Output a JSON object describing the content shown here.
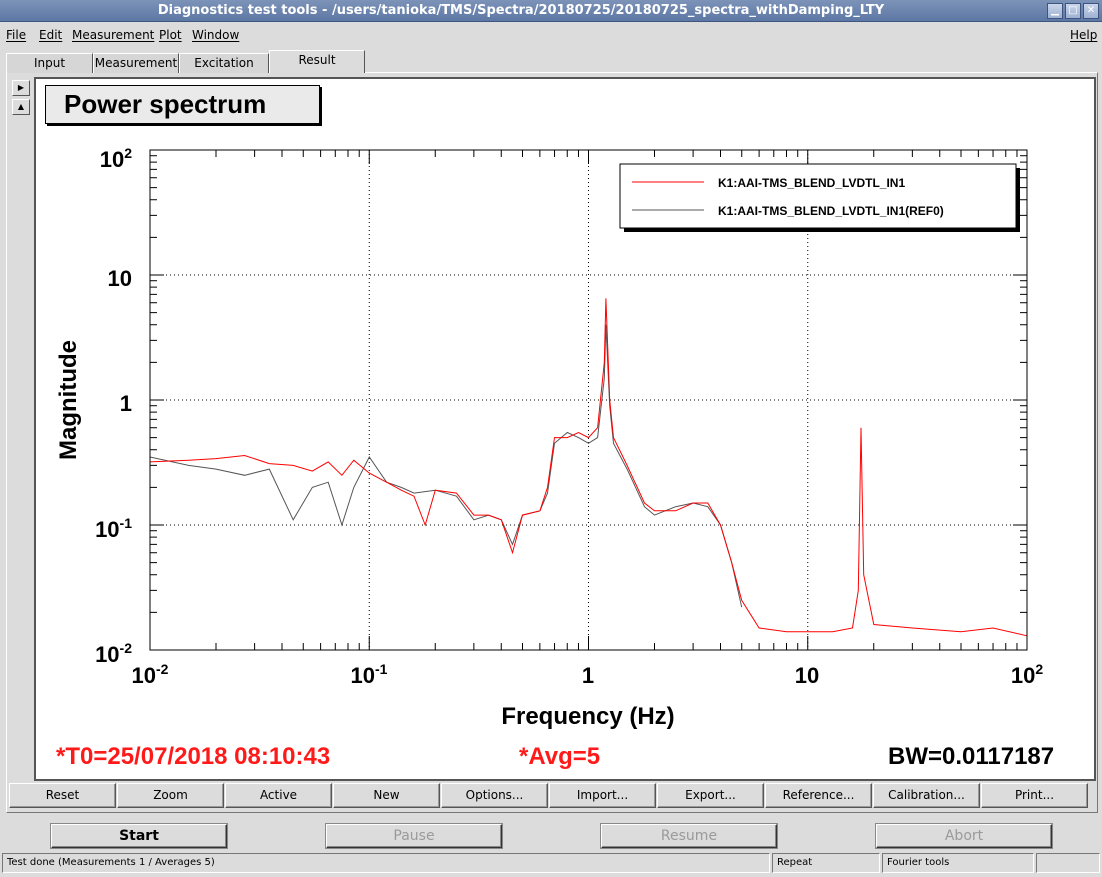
{
  "window": {
    "title": "Diagnostics test tools - /users/tanioka/TMS/Spectra/20180725/20180725_spectra_withDamping_LTY"
  },
  "menu": {
    "items": [
      "File",
      "Edit",
      "Measurement",
      "Plot",
      "Window"
    ],
    "help": "Help"
  },
  "tabs": [
    "Input",
    "Measurement",
    "Excitation",
    "Result"
  ],
  "active_tab": "Result",
  "plot": {
    "title": "Power spectrum",
    "t0": "*T0=25/07/2018 08:10:43",
    "avg": "*Avg=5",
    "bw": "BW=0.0117187"
  },
  "chart_data": {
    "type": "line",
    "title": "Power spectrum",
    "xlabel": "Frequency (Hz)",
    "ylabel": "Magnitude",
    "xscale": "log",
    "yscale": "log",
    "xlim": [
      0.01,
      100
    ],
    "ylim": [
      0.01,
      100
    ],
    "x_ticks": [
      "10-2",
      "10-1",
      "1",
      "10",
      "102"
    ],
    "y_ticks": [
      "10-2",
      "10-1",
      "1",
      "10",
      "102"
    ],
    "grid": true,
    "legend_position": "top-right",
    "series": [
      {
        "name": "K1:AAI-TMS_BLEND_LVDTL_IN1",
        "color": "#ff0000",
        "points": [
          [
            0.01,
            0.32
          ],
          [
            0.015,
            0.33
          ],
          [
            0.02,
            0.34
          ],
          [
            0.027,
            0.36
          ],
          [
            0.035,
            0.31
          ],
          [
            0.045,
            0.3
          ],
          [
            0.055,
            0.27
          ],
          [
            0.065,
            0.32
          ],
          [
            0.075,
            0.25
          ],
          [
            0.085,
            0.33
          ],
          [
            0.1,
            0.26
          ],
          [
            0.12,
            0.22
          ],
          [
            0.14,
            0.19
          ],
          [
            0.16,
            0.17
          ],
          [
            0.18,
            0.1
          ],
          [
            0.2,
            0.19
          ],
          [
            0.25,
            0.18
          ],
          [
            0.3,
            0.12
          ],
          [
            0.35,
            0.12
          ],
          [
            0.4,
            0.11
          ],
          [
            0.45,
            0.06
          ],
          [
            0.5,
            0.12
          ],
          [
            0.6,
            0.13
          ],
          [
            0.65,
            0.2
          ],
          [
            0.7,
            0.5
          ],
          [
            0.8,
            0.5
          ],
          [
            0.9,
            0.55
          ],
          [
            1.0,
            0.5
          ],
          [
            1.1,
            0.6
          ],
          [
            1.18,
            2.0
          ],
          [
            1.2,
            6.5
          ],
          [
            1.25,
            1.0
          ],
          [
            1.3,
            0.5
          ],
          [
            1.5,
            0.3
          ],
          [
            1.8,
            0.15
          ],
          [
            2.0,
            0.13
          ],
          [
            2.5,
            0.13
          ],
          [
            3.0,
            0.15
          ],
          [
            3.5,
            0.15
          ],
          [
            4.0,
            0.1
          ],
          [
            4.5,
            0.05
          ],
          [
            5.0,
            0.025
          ],
          [
            6.0,
            0.015
          ],
          [
            8.0,
            0.014
          ],
          [
            10.0,
            0.014
          ],
          [
            13.0,
            0.014
          ],
          [
            16.0,
            0.015
          ],
          [
            17.0,
            0.03
          ],
          [
            17.5,
            0.6
          ],
          [
            18.0,
            0.04
          ],
          [
            20.0,
            0.016
          ],
          [
            30.0,
            0.015
          ],
          [
            50.0,
            0.014
          ],
          [
            70.0,
            0.015
          ],
          [
            100.0,
            0.013
          ]
        ]
      },
      {
        "name": "K1:AAI-TMS_BLEND_LVDTL_IN1(REF0)",
        "color": "#555555",
        "points": [
          [
            0.01,
            0.35
          ],
          [
            0.015,
            0.3
          ],
          [
            0.02,
            0.28
          ],
          [
            0.027,
            0.25
          ],
          [
            0.035,
            0.28
          ],
          [
            0.045,
            0.11
          ],
          [
            0.055,
            0.2
          ],
          [
            0.065,
            0.22
          ],
          [
            0.075,
            0.1
          ],
          [
            0.085,
            0.2
          ],
          [
            0.1,
            0.35
          ],
          [
            0.12,
            0.22
          ],
          [
            0.14,
            0.2
          ],
          [
            0.16,
            0.18
          ],
          [
            0.2,
            0.19
          ],
          [
            0.25,
            0.17
          ],
          [
            0.3,
            0.11
          ],
          [
            0.35,
            0.12
          ],
          [
            0.4,
            0.11
          ],
          [
            0.45,
            0.07
          ],
          [
            0.5,
            0.12
          ],
          [
            0.6,
            0.13
          ],
          [
            0.65,
            0.18
          ],
          [
            0.7,
            0.45
          ],
          [
            0.8,
            0.55
          ],
          [
            0.9,
            0.5
          ],
          [
            1.0,
            0.45
          ],
          [
            1.1,
            0.5
          ],
          [
            1.18,
            1.5
          ],
          [
            1.2,
            4.0
          ],
          [
            1.25,
            0.9
          ],
          [
            1.3,
            0.45
          ],
          [
            1.5,
            0.28
          ],
          [
            1.8,
            0.14
          ],
          [
            2.0,
            0.12
          ],
          [
            2.5,
            0.14
          ],
          [
            3.0,
            0.15
          ],
          [
            3.5,
            0.14
          ],
          [
            4.0,
            0.1
          ],
          [
            4.5,
            0.05
          ],
          [
            5.0,
            0.022
          ]
        ]
      }
    ]
  },
  "buttons": [
    "Reset",
    "Zoom",
    "Active",
    "New",
    "Options...",
    "Import...",
    "Export...",
    "Reference...",
    "Calibration...",
    "Print..."
  ],
  "controls": {
    "start": "Start",
    "pause": "Pause",
    "resume": "Resume",
    "abort": "Abort"
  },
  "status": {
    "message": "Test done (Measurements 1 / Averages 5)",
    "repeat": "Repeat",
    "tool": "Fourier tools"
  }
}
